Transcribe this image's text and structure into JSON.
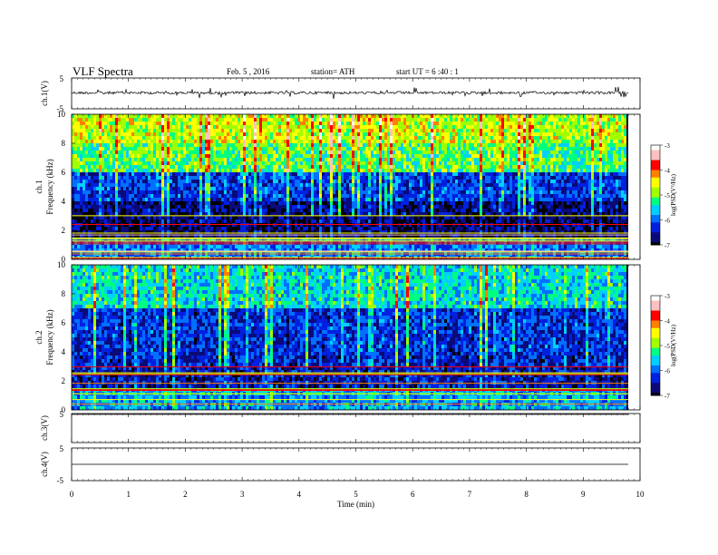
{
  "header": {
    "title": "VLF Spectra",
    "date": "Feb. 5  , 2016",
    "station": "station= ATH",
    "start_ut": "start  UT =   6  :40 : 1"
  },
  "colors": {
    "colormap": [
      "#000000",
      "#0a0a78",
      "#0020e0",
      "#0070ff",
      "#00d0ff",
      "#00ff80",
      "#a0ff00",
      "#ffff00",
      "#ff8000",
      "#ff0000",
      "#ffc0c0",
      "#ffffff"
    ],
    "trace": "#000000",
    "frame": "#000000"
  },
  "chart_data": [
    {
      "type": "line",
      "name": "ch1-waveform",
      "ylabel": "ch.1(V)",
      "ylim": [
        -5,
        5
      ],
      "yticks": [
        "5",
        "-5"
      ],
      "xlim": [
        0,
        10
      ],
      "description_level_v": 0.2
    },
    {
      "type": "heatmap",
      "name": "ch1-spectrogram",
      "ylabel": "Frequency  (kHz)",
      "channel_label": "ch.1",
      "ylim": [
        0,
        10
      ],
      "yticks": [
        "0",
        "2",
        "4",
        "6",
        "8",
        "10"
      ],
      "xlim": [
        0,
        9.8
      ],
      "colorbar": {
        "label": "log(PSD(V²/Hz)",
        "ticks": [
          "-3",
          "-4",
          "-5",
          "-6",
          "-7"
        ],
        "range": [
          -7,
          -3
        ]
      },
      "bands": [
        {
          "from_khz": 0,
          "to_khz": 1.5,
          "level": -6.0
        },
        {
          "from_khz": 1.5,
          "to_khz": 4.0,
          "level": -6.8
        },
        {
          "from_khz": 4.0,
          "to_khz": 6.0,
          "level": -6.3
        },
        {
          "from_khz": 6.0,
          "to_khz": 8.0,
          "level": -5.2
        },
        {
          "from_khz": 8.0,
          "to_khz": 10.0,
          "level": -4.8
        }
      ]
    },
    {
      "type": "heatmap",
      "name": "ch2-spectrogram",
      "ylabel": "Frequency  (kHz)",
      "channel_label": "ch.2",
      "ylim": [
        0,
        10
      ],
      "yticks": [
        "0",
        "2",
        "4",
        "6",
        "8",
        "10"
      ],
      "xlim": [
        0,
        9.8
      ],
      "colorbar": {
        "label": "log(PSD(V²/Hz)",
        "ticks": [
          "-3",
          "-4",
          "-5",
          "-6",
          "-7"
        ],
        "range": [
          -7,
          -3
        ]
      },
      "bands": [
        {
          "from_khz": 0,
          "to_khz": 1.5,
          "level": -5.8
        },
        {
          "from_khz": 1.5,
          "to_khz": 4.0,
          "level": -6.5
        },
        {
          "from_khz": 4.0,
          "to_khz": 7.0,
          "level": -6.4
        },
        {
          "from_khz": 7.0,
          "to_khz": 10.0,
          "level": -5.6
        }
      ]
    },
    {
      "type": "line",
      "name": "ch3-waveform",
      "ylabel": "ch.3(V)",
      "ylim": [
        -5,
        5
      ],
      "yticks": [
        "5"
      ],
      "xlim": [
        0,
        10
      ],
      "description_level_v": 5
    },
    {
      "type": "line",
      "name": "ch4-waveform",
      "ylabel": "ch.4(V)",
      "ylim": [
        -5,
        5
      ],
      "yticks": [
        "5",
        "-5"
      ],
      "xlim": [
        0,
        10
      ],
      "description_level_v": 0
    }
  ],
  "xaxis": {
    "label": "Time  (min)",
    "ticks": [
      "0",
      "1",
      "2",
      "3",
      "4",
      "5",
      "6",
      "7",
      "8",
      "9",
      "10"
    ],
    "range": [
      0,
      10
    ]
  }
}
